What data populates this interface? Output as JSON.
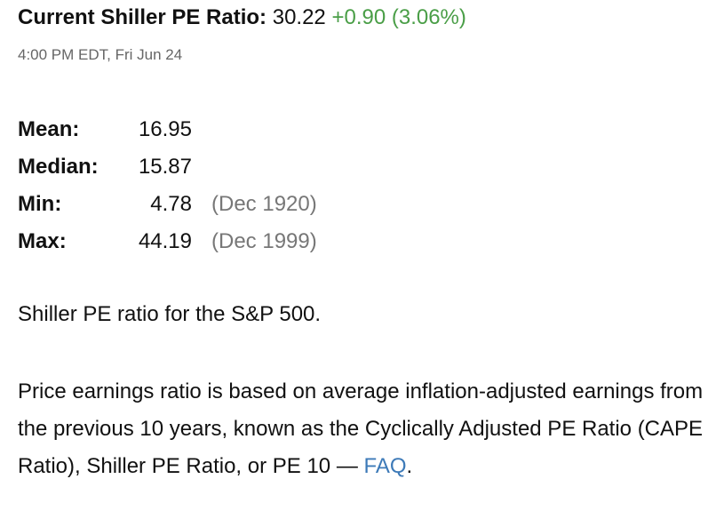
{
  "header": {
    "label": "Current Shiller PE Ratio:",
    "value": "30.22",
    "change": "+0.90 (3.06%)",
    "timestamp": "4:00 PM EDT, Fri Jun 24"
  },
  "stats": [
    {
      "label": "Mean:",
      "value": "16.95"
    },
    {
      "label": "Median:",
      "value": "15.87"
    },
    {
      "label": "Min:",
      "value": "4.78",
      "date": "(Dec 1920)"
    },
    {
      "label": "Max:",
      "value": "44.19",
      "date": "(Dec 1999)"
    }
  ],
  "description": "Shiller PE ratio for the S&P 500.",
  "paragraph": {
    "text": "Price earnings ratio is based on average inflation-adjusted earnings from the previous 10 years, known as the Cyclically Adjusted PE Ratio (CAPE Ratio), Shiller PE Ratio, or PE 10 —",
    "link": "FAQ",
    "end": "."
  }
}
